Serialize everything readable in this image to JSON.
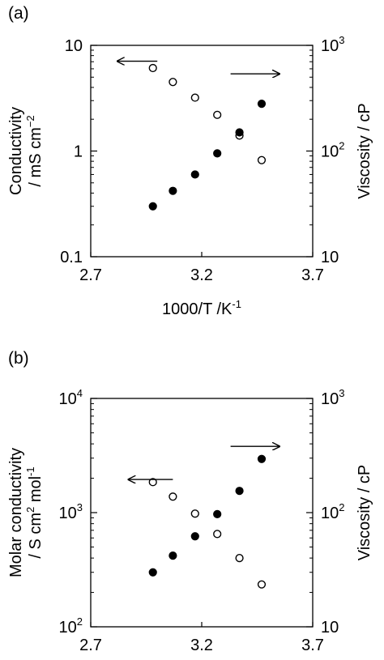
{
  "chart_data": [
    {
      "type": "scatter",
      "panel_label": "(a)",
      "xlabel": "1000/T /K",
      "xlabel_sup": "-1",
      "xlim": [
        2.7,
        3.7
      ],
      "x_ticks": [
        "2.7",
        "3.2",
        "3.7"
      ],
      "left_axis": {
        "label_line1": "Conductivity",
        "label_line2_prefix": "/ mS cm",
        "label_line2_sup": "−2",
        "scale": "log",
        "lim": [
          0.1,
          10
        ],
        "ticks": [
          {
            "v": 0.1,
            "base": "0.1",
            "sup": ""
          },
          {
            "v": 1,
            "base": "1",
            "sup": ""
          },
          {
            "v": 10,
            "base": "10",
            "sup": ""
          }
        ]
      },
      "right_axis": {
        "label": "Viscosity  / cP",
        "scale": "log",
        "lim": [
          10,
          1000
        ],
        "ticks": [
          {
            "v": 10,
            "base": "10",
            "sup": ""
          },
          {
            "v": 100,
            "base": "10",
            "sup": "2"
          },
          {
            "v": 1000,
            "base": "10",
            "sup": "3"
          }
        ]
      },
      "series": [
        {
          "marker": "open",
          "axis": "left",
          "x": [
            2.98,
            3.07,
            3.17,
            3.27,
            3.37,
            3.47
          ],
          "y": [
            6.1,
            4.5,
            3.2,
            2.2,
            1.4,
            0.82
          ]
        },
        {
          "marker": "filled",
          "axis": "right",
          "x": [
            2.98,
            3.07,
            3.17,
            3.27,
            3.37,
            3.47
          ],
          "y": [
            30,
            42,
            60,
            95,
            150,
            280
          ]
        }
      ],
      "arrows": [
        {
          "direction": "left",
          "x1": 3.0,
          "x2": 2.82,
          "y_frac": 0.075
        },
        {
          "direction": "right",
          "x1": 3.33,
          "x2": 3.55,
          "y_frac": 0.135
        }
      ]
    },
    {
      "type": "scatter",
      "panel_label": "(b)",
      "xlabel": "1000/T /K",
      "xlabel_sup": "-1",
      "xlim": [
        2.7,
        3.7
      ],
      "x_ticks": [
        "2.7",
        "3.2",
        "3.7"
      ],
      "left_axis": {
        "label_line1": "Molar conductivity",
        "label_line2_prefix": "/ S cm",
        "label_line2_sup": "2",
        "label_line2_suffix": " mol",
        "label_line2_sup2": "-1",
        "scale": "log",
        "lim": [
          100,
          10000
        ],
        "ticks": [
          {
            "v": 100,
            "base": "10",
            "sup": "2"
          },
          {
            "v": 1000,
            "base": "10",
            "sup": "3"
          },
          {
            "v": 10000,
            "base": "10",
            "sup": "4"
          }
        ]
      },
      "right_axis": {
        "label": "Viscosity  / cP",
        "scale": "log",
        "lim": [
          10,
          1000
        ],
        "ticks": [
          {
            "v": 10,
            "base": "10",
            "sup": ""
          },
          {
            "v": 100,
            "base": "10",
            "sup": "2"
          },
          {
            "v": 1000,
            "base": "10",
            "sup": "3"
          }
        ]
      },
      "series": [
        {
          "marker": "open",
          "axis": "left",
          "x": [
            2.98,
            3.07,
            3.17,
            3.27,
            3.37,
            3.47
          ],
          "y": [
            1850,
            1380,
            980,
            650,
            400,
            235
          ]
        },
        {
          "marker": "filled",
          "axis": "right",
          "x": [
            2.98,
            3.07,
            3.17,
            3.27,
            3.37,
            3.47
          ],
          "y": [
            30,
            42,
            62,
            97,
            155,
            295
          ]
        }
      ],
      "arrows": [
        {
          "direction": "left",
          "x1": 3.07,
          "x2": 2.87,
          "y_frac": 0.355
        },
        {
          "direction": "right",
          "x1": 3.33,
          "x2": 3.55,
          "y_frac": 0.21
        }
      ]
    }
  ]
}
